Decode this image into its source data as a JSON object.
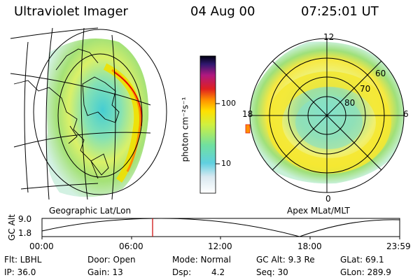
{
  "header": {
    "instrument": "Ultraviolet Imager",
    "date": "04 Aug 00",
    "time": "07:25:01 UT"
  },
  "left_panel": {
    "label": "Geographic Lat/Lon"
  },
  "right_panel": {
    "label": "Apex MLat/MLT",
    "mlt_labels": [
      "12",
      "18",
      "6",
      "0"
    ],
    "lat_labels": [
      "60",
      "70",
      "80"
    ]
  },
  "colorbar": {
    "unit_label": "photon cm⁻²s⁻¹",
    "ticks": [
      "100",
      "10"
    ],
    "scale": "log"
  },
  "timeline": {
    "ylabel": "GC Alt",
    "yticks": [
      "9.0",
      "1.8"
    ],
    "xticks": [
      "00:00",
      "06:00",
      "12:00",
      "18:00",
      "23:59"
    ],
    "marker_color": "#cc0000"
  },
  "footer": {
    "flt": "Flt: LBHL",
    "ip": "IP: 36.0",
    "door": "Door: Open",
    "gain": "Gain: 13",
    "mode": "Mode: Normal",
    "dsp_label": "Dsp:",
    "dsp_value": "4.2",
    "gc_alt": "GC Alt: 9.3 Re",
    "seq": "Seq: 30",
    "glat": "GLat: 69.1",
    "glon": "GLon: 289.9"
  }
}
